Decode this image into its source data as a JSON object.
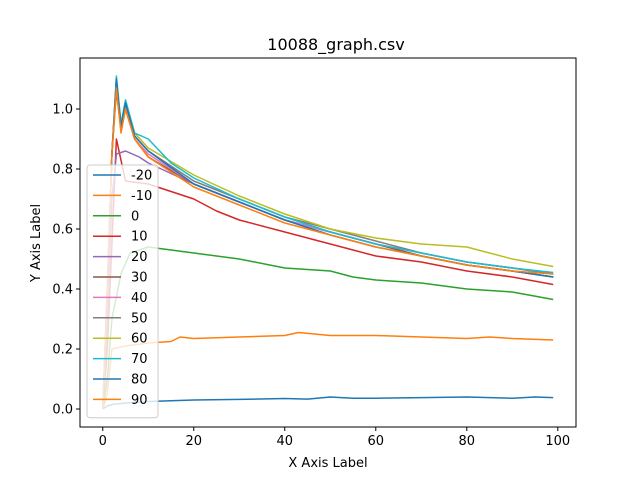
{
  "chart_data": {
    "type": "line",
    "title": "10088_graph.csv",
    "xlabel": "X Axis Label",
    "ylabel": "Y Axis Label",
    "xlim": [
      -5,
      104
    ],
    "ylim": [
      -0.06,
      1.17
    ],
    "xticks": [
      0,
      20,
      40,
      60,
      80,
      100
    ],
    "yticks": [
      0.0,
      0.2,
      0.4,
      0.6,
      0.8,
      1.0
    ],
    "xtick_labels": [
      "0",
      "20",
      "40",
      "60",
      "80",
      "100"
    ],
    "ytick_labels": [
      "0.0",
      "0.2",
      "0.4",
      "0.6",
      "0.8",
      "1.0"
    ],
    "grid": false,
    "legend_position": "left",
    "series": [
      {
        "name": "-20",
        "color": "#1f77b4",
        "points": [
          [
            0,
            0.0
          ],
          [
            1,
            0.01
          ],
          [
            2,
            0.015
          ],
          [
            5,
            0.02
          ],
          [
            10,
            0.025
          ],
          [
            20,
            0.03
          ],
          [
            30,
            0.032
          ],
          [
            40,
            0.035
          ],
          [
            45,
            0.033
          ],
          [
            50,
            0.04
          ],
          [
            55,
            0.036
          ],
          [
            60,
            0.036
          ],
          [
            70,
            0.038
          ],
          [
            80,
            0.04
          ],
          [
            90,
            0.036
          ],
          [
            95,
            0.04
          ],
          [
            99,
            0.038
          ]
        ]
      },
      {
        "name": "-10",
        "color": "#ff7f0e",
        "points": [
          [
            0,
            0.0
          ],
          [
            1,
            0.05
          ],
          [
            2,
            0.2
          ],
          [
            5,
            0.21
          ],
          [
            10,
            0.22
          ],
          [
            15,
            0.225
          ],
          [
            17,
            0.24
          ],
          [
            20,
            0.235
          ],
          [
            30,
            0.24
          ],
          [
            40,
            0.245
          ],
          [
            43,
            0.255
          ],
          [
            50,
            0.245
          ],
          [
            60,
            0.245
          ],
          [
            70,
            0.24
          ],
          [
            80,
            0.235
          ],
          [
            85,
            0.24
          ],
          [
            90,
            0.235
          ],
          [
            99,
            0.23
          ]
        ]
      },
      {
        "name": "0",
        "color": "#2ca02c",
        "points": [
          [
            0,
            0.0
          ],
          [
            1,
            0.1
          ],
          [
            2,
            0.3
          ],
          [
            4,
            0.45
          ],
          [
            6,
            0.52
          ],
          [
            10,
            0.54
          ],
          [
            20,
            0.52
          ],
          [
            30,
            0.5
          ],
          [
            40,
            0.47
          ],
          [
            50,
            0.46
          ],
          [
            55,
            0.44
          ],
          [
            60,
            0.43
          ],
          [
            70,
            0.42
          ],
          [
            80,
            0.4
          ],
          [
            90,
            0.39
          ],
          [
            99,
            0.365
          ]
        ]
      },
      {
        "name": "10",
        "color": "#d62728",
        "points": [
          [
            0,
            0.0
          ],
          [
            1,
            0.2
          ],
          [
            2,
            0.55
          ],
          [
            3,
            0.9
          ],
          [
            5,
            0.76
          ],
          [
            10,
            0.75
          ],
          [
            20,
            0.7
          ],
          [
            25,
            0.66
          ],
          [
            30,
            0.63
          ],
          [
            40,
            0.59
          ],
          [
            50,
            0.55
          ],
          [
            60,
            0.51
          ],
          [
            70,
            0.49
          ],
          [
            80,
            0.46
          ],
          [
            90,
            0.44
          ],
          [
            99,
            0.415
          ]
        ]
      },
      {
        "name": "20",
        "color": "#9467bd",
        "points": [
          [
            0,
            0.0
          ],
          [
            1,
            0.3
          ],
          [
            2,
            0.7
          ],
          [
            3,
            0.85
          ],
          [
            5,
            0.86
          ],
          [
            8,
            0.84
          ],
          [
            10,
            0.82
          ],
          [
            20,
            0.75
          ],
          [
            30,
            0.69
          ],
          [
            40,
            0.63
          ],
          [
            50,
            0.59
          ],
          [
            60,
            0.55
          ],
          [
            70,
            0.51
          ],
          [
            80,
            0.48
          ],
          [
            90,
            0.46
          ],
          [
            99,
            0.44
          ]
        ]
      },
      {
        "name": "30",
        "color": "#8c564b",
        "points": [
          [
            0,
            0.0
          ],
          [
            1,
            0.4
          ],
          [
            2,
            0.85
          ],
          [
            3,
            1.06
          ],
          [
            4,
            0.93
          ],
          [
            5,
            1.0
          ],
          [
            7,
            0.9
          ],
          [
            10,
            0.84
          ],
          [
            20,
            0.75
          ],
          [
            30,
            0.69
          ],
          [
            40,
            0.63
          ],
          [
            50,
            0.59
          ],
          [
            60,
            0.55
          ],
          [
            70,
            0.51
          ],
          [
            80,
            0.48
          ],
          [
            90,
            0.46
          ],
          [
            99,
            0.44
          ]
        ]
      },
      {
        "name": "40",
        "color": "#e377c2",
        "points": [
          [
            0,
            0.0
          ],
          [
            1,
            0.4
          ],
          [
            2,
            0.85
          ],
          [
            3,
            1.08
          ],
          [
            4,
            0.94
          ],
          [
            5,
            1.01
          ],
          [
            7,
            0.9
          ],
          [
            10,
            0.85
          ],
          [
            20,
            0.75
          ],
          [
            30,
            0.69
          ],
          [
            40,
            0.63
          ],
          [
            50,
            0.59
          ],
          [
            60,
            0.55
          ],
          [
            70,
            0.52
          ],
          [
            80,
            0.49
          ],
          [
            90,
            0.47
          ],
          [
            99,
            0.45
          ]
        ]
      },
      {
        "name": "50",
        "color": "#7f7f7f",
        "points": [
          [
            0,
            0.0
          ],
          [
            1,
            0.4
          ],
          [
            2,
            0.85
          ],
          [
            3,
            1.09
          ],
          [
            4,
            0.94
          ],
          [
            5,
            1.02
          ],
          [
            7,
            0.91
          ],
          [
            10,
            0.86
          ],
          [
            20,
            0.76
          ],
          [
            30,
            0.7
          ],
          [
            40,
            0.64
          ],
          [
            50,
            0.6
          ],
          [
            60,
            0.56
          ],
          [
            70,
            0.52
          ],
          [
            80,
            0.49
          ],
          [
            90,
            0.47
          ],
          [
            99,
            0.45
          ]
        ]
      },
      {
        "name": "60",
        "color": "#bcbd22",
        "points": [
          [
            0,
            0.0
          ],
          [
            1,
            0.4
          ],
          [
            2,
            0.85
          ],
          [
            3,
            1.1
          ],
          [
            4,
            0.95
          ],
          [
            5,
            1.03
          ],
          [
            7,
            0.92
          ],
          [
            10,
            0.87
          ],
          [
            20,
            0.78
          ],
          [
            30,
            0.71
          ],
          [
            40,
            0.65
          ],
          [
            50,
            0.6
          ],
          [
            60,
            0.57
          ],
          [
            70,
            0.55
          ],
          [
            80,
            0.54
          ],
          [
            90,
            0.5
          ],
          [
            99,
            0.475
          ]
        ]
      },
      {
        "name": "70",
        "color": "#17becf",
        "points": [
          [
            0,
            0.0
          ],
          [
            1,
            0.4
          ],
          [
            2,
            0.85
          ],
          [
            3,
            1.11
          ],
          [
            4,
            0.95
          ],
          [
            5,
            1.03
          ],
          [
            7,
            0.92
          ],
          [
            10,
            0.9
          ],
          [
            15,
            0.82
          ],
          [
            20,
            0.77
          ],
          [
            30,
            0.7
          ],
          [
            40,
            0.64
          ],
          [
            50,
            0.59
          ],
          [
            60,
            0.55
          ],
          [
            70,
            0.52
          ],
          [
            80,
            0.49
          ],
          [
            90,
            0.47
          ],
          [
            99,
            0.455
          ]
        ]
      },
      {
        "name": "80",
        "color": "#1f77b4",
        "points": [
          [
            0,
            0.0
          ],
          [
            1,
            0.4
          ],
          [
            2,
            0.85
          ],
          [
            3,
            1.1
          ],
          [
            4,
            0.94
          ],
          [
            5,
            1.02
          ],
          [
            7,
            0.91
          ],
          [
            10,
            0.86
          ],
          [
            20,
            0.75
          ],
          [
            30,
            0.69
          ],
          [
            40,
            0.63
          ],
          [
            50,
            0.58
          ],
          [
            60,
            0.54
          ],
          [
            70,
            0.51
          ],
          [
            80,
            0.48
          ],
          [
            90,
            0.46
          ],
          [
            99,
            0.44
          ]
        ]
      },
      {
        "name": "90",
        "color": "#ff7f0e",
        "points": [
          [
            0,
            0.0
          ],
          [
            1,
            0.4
          ],
          [
            2,
            0.85
          ],
          [
            3,
            1.07
          ],
          [
            4,
            0.92
          ],
          [
            5,
            1.0
          ],
          [
            7,
            0.9
          ],
          [
            10,
            0.84
          ],
          [
            20,
            0.74
          ],
          [
            30,
            0.68
          ],
          [
            40,
            0.62
          ],
          [
            50,
            0.58
          ],
          [
            60,
            0.54
          ],
          [
            70,
            0.51
          ],
          [
            80,
            0.48
          ],
          [
            90,
            0.46
          ],
          [
            99,
            0.45
          ]
        ]
      }
    ]
  }
}
